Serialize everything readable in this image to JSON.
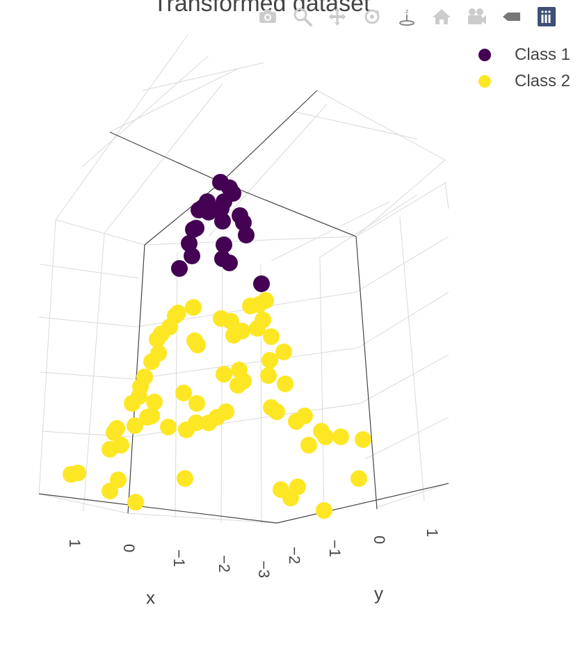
{
  "chart_data": {
    "type": "scatter",
    "title": "Transformed dataset",
    "axes": {
      "x": {
        "label": "x",
        "ticks": [
          "1",
          "0",
          "−1",
          "−2",
          "−3"
        ]
      },
      "y": {
        "label": "y",
        "ticks": [
          "−2",
          "−1",
          "0",
          "1"
        ]
      }
    },
    "legend_placement": "top-right",
    "series": [
      {
        "name": "Class 1",
        "color": "#440154",
        "points": [
          [
            317,
            262
          ],
          [
            330,
            270
          ],
          [
            335,
            278
          ],
          [
            322,
            290
          ],
          [
            298,
            290
          ],
          [
            290,
            300
          ],
          [
            286,
            302
          ],
          [
            300,
            305
          ],
          [
            318,
            300
          ],
          [
            345,
            310
          ],
          [
            350,
            320
          ],
          [
            320,
            318
          ],
          [
            282,
            328
          ],
          [
            278,
            330
          ],
          [
            354,
            338
          ],
          [
            272,
            350
          ],
          [
            276,
            368
          ],
          [
            258,
            386
          ],
          [
            322,
            352
          ],
          [
            320,
            372
          ],
          [
            330,
            378
          ],
          [
            376,
            408
          ]
        ]
      },
      {
        "name": "Class 2",
        "color": "#fde725",
        "points": [
          [
            102,
            682
          ],
          [
            112,
            680
          ],
          [
            158,
            706
          ],
          [
            170,
            690
          ],
          [
            195,
            722
          ],
          [
            158,
            646
          ],
          [
            174,
            640
          ],
          [
            168,
            616
          ],
          [
            164,
            622
          ],
          [
            194,
            612
          ],
          [
            212,
            600
          ],
          [
            218,
            598
          ],
          [
            190,
            580
          ],
          [
            222,
            578
          ],
          [
            200,
            570
          ],
          [
            202,
            556
          ],
          [
            208,
            542
          ],
          [
            218,
            520
          ],
          [
            228,
            508
          ],
          [
            226,
            488
          ],
          [
            232,
            480
          ],
          [
            244,
            470
          ],
          [
            252,
            454
          ],
          [
            256,
            450
          ],
          [
            278,
            442
          ],
          [
            242,
            614
          ],
          [
            268,
            618
          ],
          [
            282,
            608
          ],
          [
            300,
            608
          ],
          [
            312,
            600
          ],
          [
            325,
            592
          ],
          [
            266,
            688
          ],
          [
            264,
            565
          ],
          [
            283,
            580
          ],
          [
            284,
            496
          ],
          [
            280,
            490
          ],
          [
            322,
            538
          ],
          [
            344,
            532
          ],
          [
            350,
            548
          ],
          [
            342,
            554
          ],
          [
            318,
            458
          ],
          [
            332,
            462
          ],
          [
            336,
            482
          ],
          [
            348,
            476
          ],
          [
            360,
            440
          ],
          [
            372,
            438
          ],
          [
            382,
            432
          ],
          [
            378,
            460
          ],
          [
            370,
            472
          ],
          [
            390,
            484
          ],
          [
            408,
            506
          ],
          [
            388,
            518
          ],
          [
            386,
            540
          ],
          [
            410,
            552
          ],
          [
            390,
            586
          ],
          [
            398,
            592
          ],
          [
            426,
            606
          ],
          [
            438,
            598
          ],
          [
            444,
            640
          ],
          [
            462,
            620
          ],
          [
            468,
            628
          ],
          [
            490,
            628
          ],
          [
            522,
            632
          ],
          [
            404,
            704
          ],
          [
            428,
            700
          ],
          [
            418,
            716
          ],
          [
            466,
            734
          ],
          [
            516,
            688
          ]
        ]
      }
    ]
  },
  "title": "Transformed dataset",
  "legend": [
    {
      "label": "Class 1",
      "color": "#440154"
    },
    {
      "label": "Class 2",
      "color": "#fde725"
    }
  ],
  "modebar": [
    {
      "name": "camera-icon"
    },
    {
      "name": "zoom-icon"
    },
    {
      "name": "pan-icon"
    },
    {
      "name": "orbit-icon"
    },
    {
      "name": "turntable-icon"
    },
    {
      "name": "home-icon"
    },
    {
      "name": "camera-view-icon"
    },
    {
      "name": "hover-icon"
    },
    {
      "name": "plotly-logo-icon"
    }
  ],
  "colors": {
    "axis_text": "#444444",
    "grid": "#d9d9d9",
    "axis_line": "#444444"
  }
}
